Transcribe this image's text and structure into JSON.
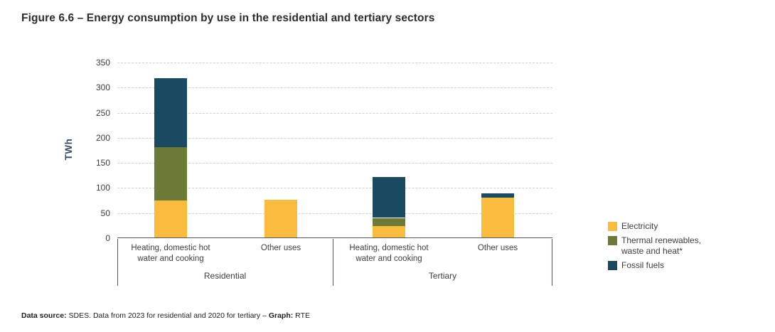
{
  "title": "Figure 6.6 – Energy consumption by use in the residential and tertiary sectors",
  "footer": {
    "source_label": "Data source:",
    "source_text": " SDES. Data from 2023 for residential and 2020 for tertiary – ",
    "graph_label": "Graph:",
    "graph_text": " RTE"
  },
  "chart_data": {
    "type": "bar",
    "stacked": true,
    "title": "Figure 6.6 – Energy consumption by use in the residential and tertiary sectors",
    "xlabel": "",
    "ylabel": "TWh",
    "ylim": [
      0,
      350
    ],
    "ytick_step": 50,
    "grid": "horizontal-dashed",
    "legend_position": "right",
    "groups": [
      {
        "label": "Residential",
        "categories": [
          "Heating, domestic hot\nwater and cooking",
          "Other uses"
        ]
      },
      {
        "label": "Tertiary",
        "categories": [
          "Heating, domestic hot\nwater and cooking",
          "Other uses"
        ]
      }
    ],
    "categories_flat": [
      "Residential – Heating, domestic hot water and cooking",
      "Residential – Other uses",
      "Tertiary – Heating, domestic hot water and cooking",
      "Tertiary – Other uses"
    ],
    "series": [
      {
        "name": "Electricity",
        "color": "#FBBC3E",
        "values": [
          73,
          75,
          22,
          80
        ]
      },
      {
        "name": "Thermal renewables,\nwaste and heat*",
        "color": "#6B7A35",
        "values": [
          107,
          0,
          17,
          0
        ]
      },
      {
        "name": "Fossil fuels",
        "color": "#1A4A61",
        "values": [
          137,
          0,
          81,
          8
        ]
      }
    ],
    "totals": [
      317,
      75,
      120,
      88
    ]
  }
}
